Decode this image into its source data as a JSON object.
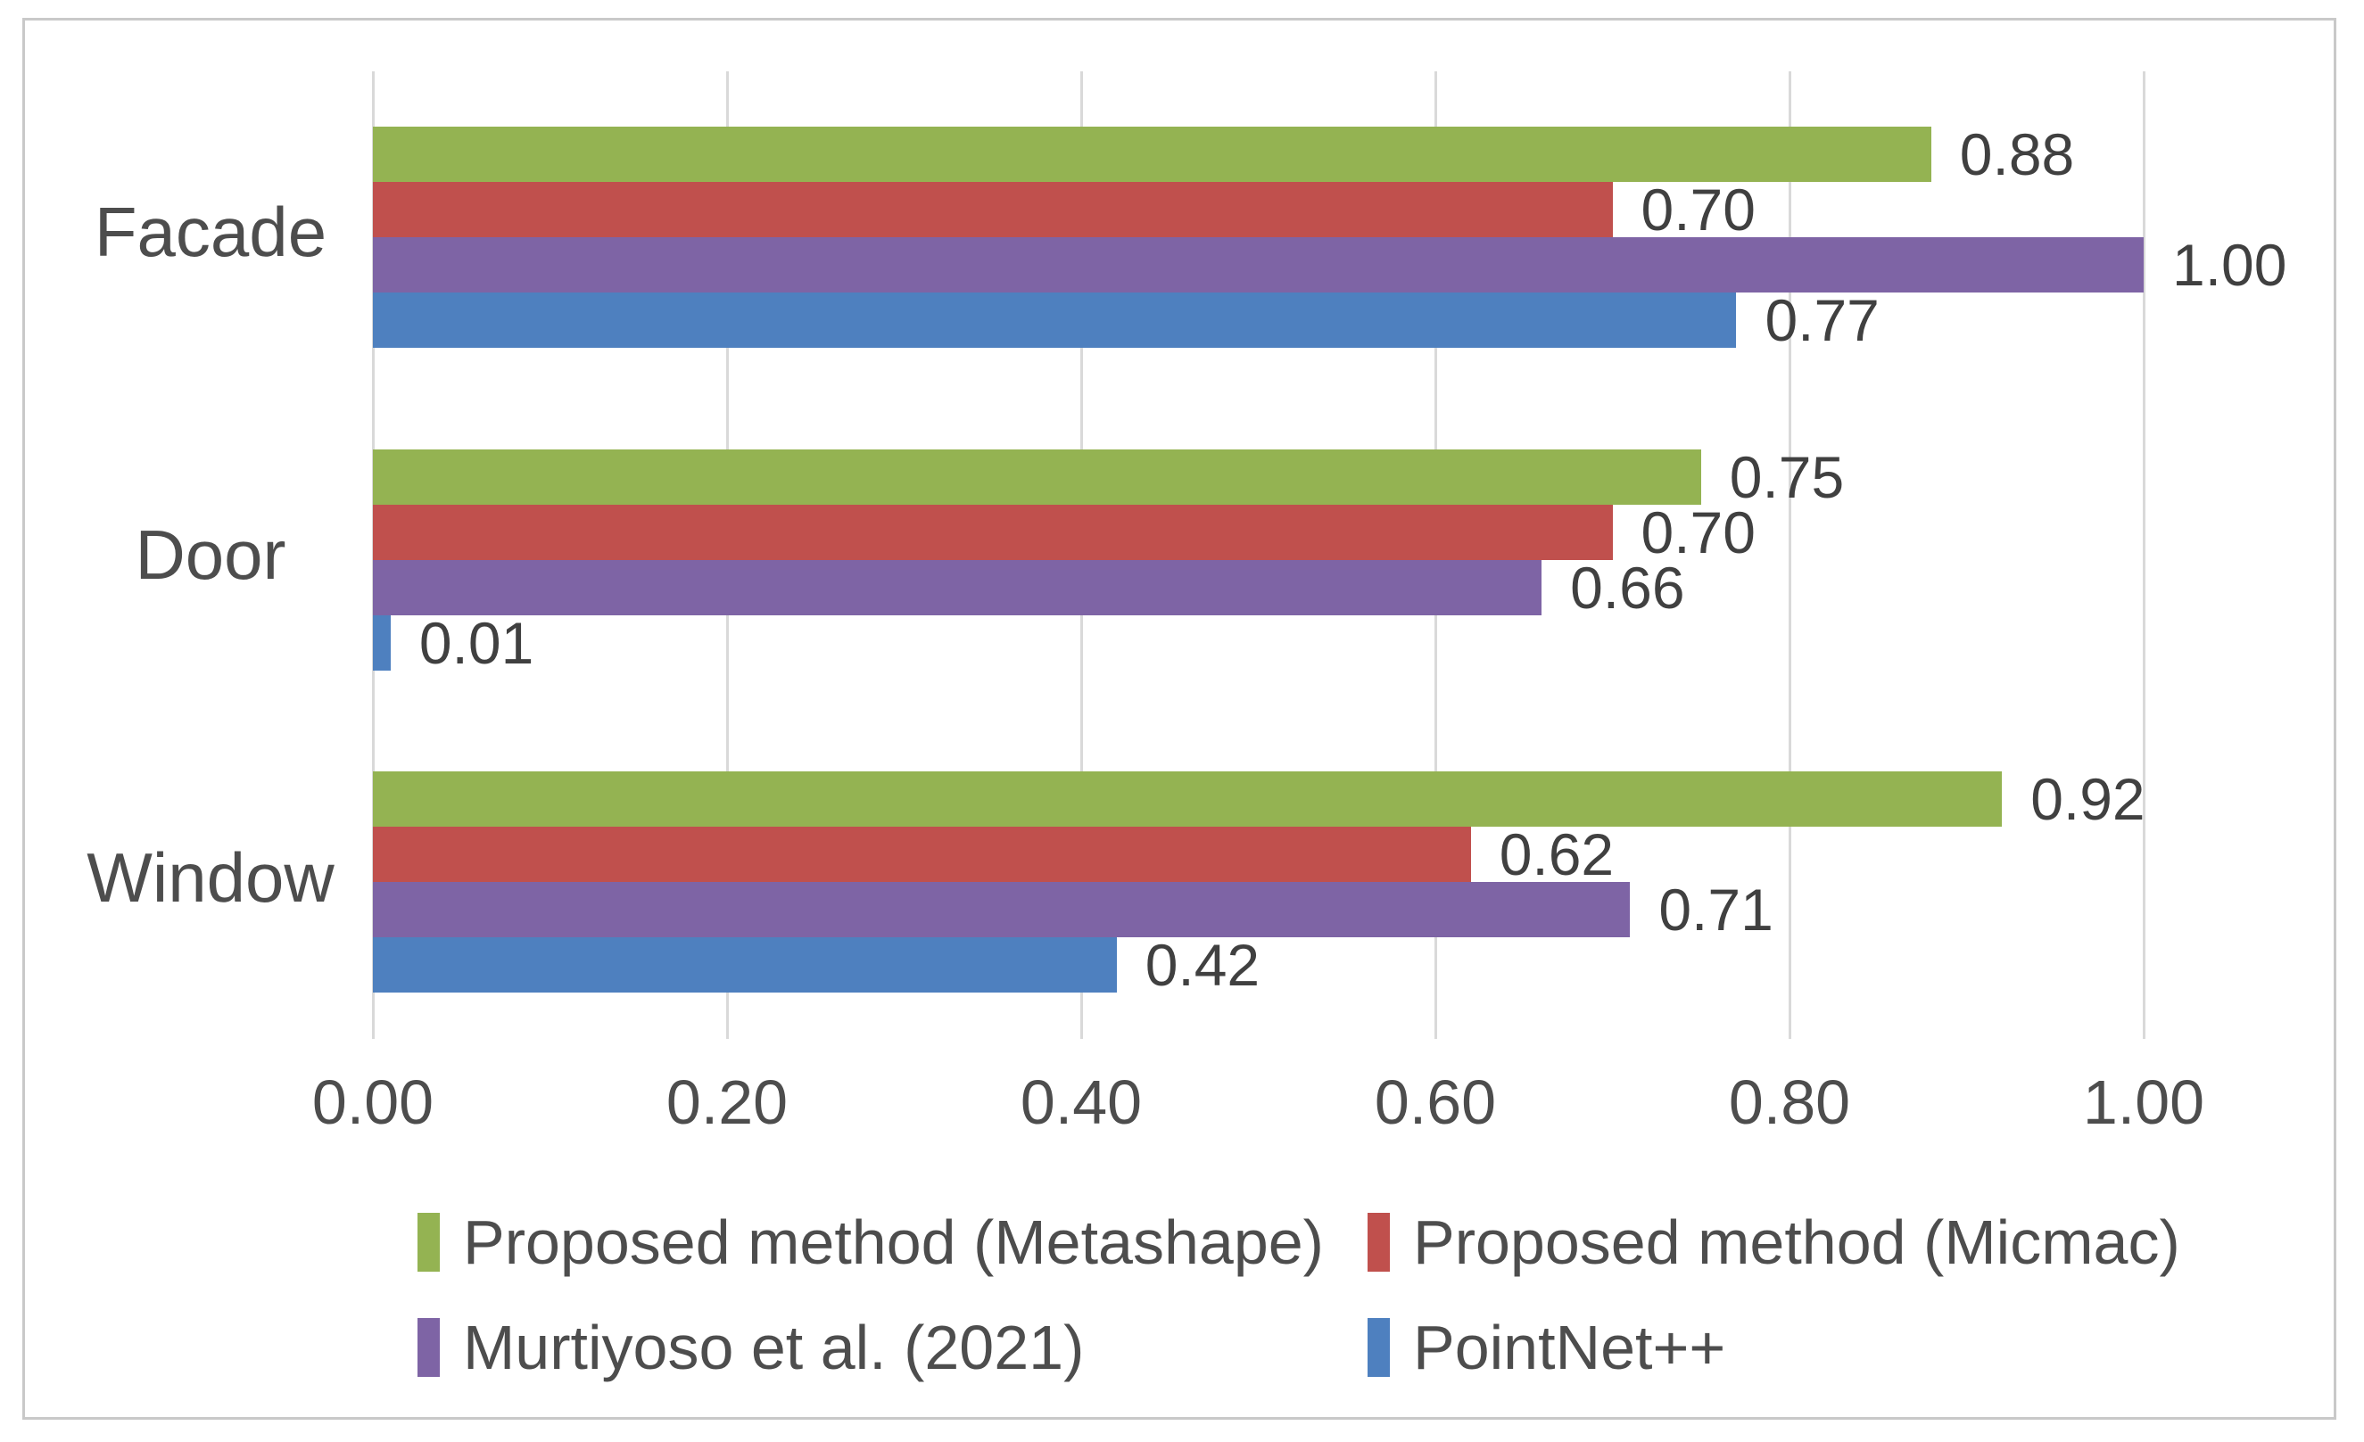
{
  "chart_data": {
    "type": "bar",
    "orientation": "horizontal",
    "categories": [
      "Facade",
      "Door",
      "Window"
    ],
    "series": [
      {
        "name": "Proposed method (Metashape)",
        "color": "#94b352",
        "values": [
          0.88,
          0.75,
          0.92
        ],
        "labels": [
          "0.88",
          "0.75",
          "0.92"
        ]
      },
      {
        "name": "Proposed method (Micmac)",
        "color": "#c0504d",
        "values": [
          0.7,
          0.7,
          0.62
        ],
        "labels": [
          "0.70",
          "0.70",
          "0.62"
        ]
      },
      {
        "name": "Murtiyoso et al. (2021)",
        "color": "#7e64a5",
        "values": [
          1.0,
          0.66,
          0.71
        ],
        "labels": [
          "1.00",
          "0.66",
          "0.71"
        ]
      },
      {
        "name": "PointNet++",
        "color": "#4e80bf",
        "values": [
          0.77,
          0.01,
          0.42
        ],
        "labels": [
          "0.77",
          "0.01",
          "0.42"
        ]
      }
    ],
    "x_axis": {
      "min": 0,
      "max": 1,
      "ticks": [
        "0.00",
        "0.20",
        "0.40",
        "0.60",
        "0.80",
        "1.00"
      ]
    },
    "grid": true,
    "legend_position": "bottom",
    "styles": {
      "grid_color": "#d9d9d9",
      "frame_border_color": "#c9c9c9",
      "axis_text_color": "#4d4d4d",
      "value_label_color": "#404040",
      "background": "#ffffff"
    }
  }
}
